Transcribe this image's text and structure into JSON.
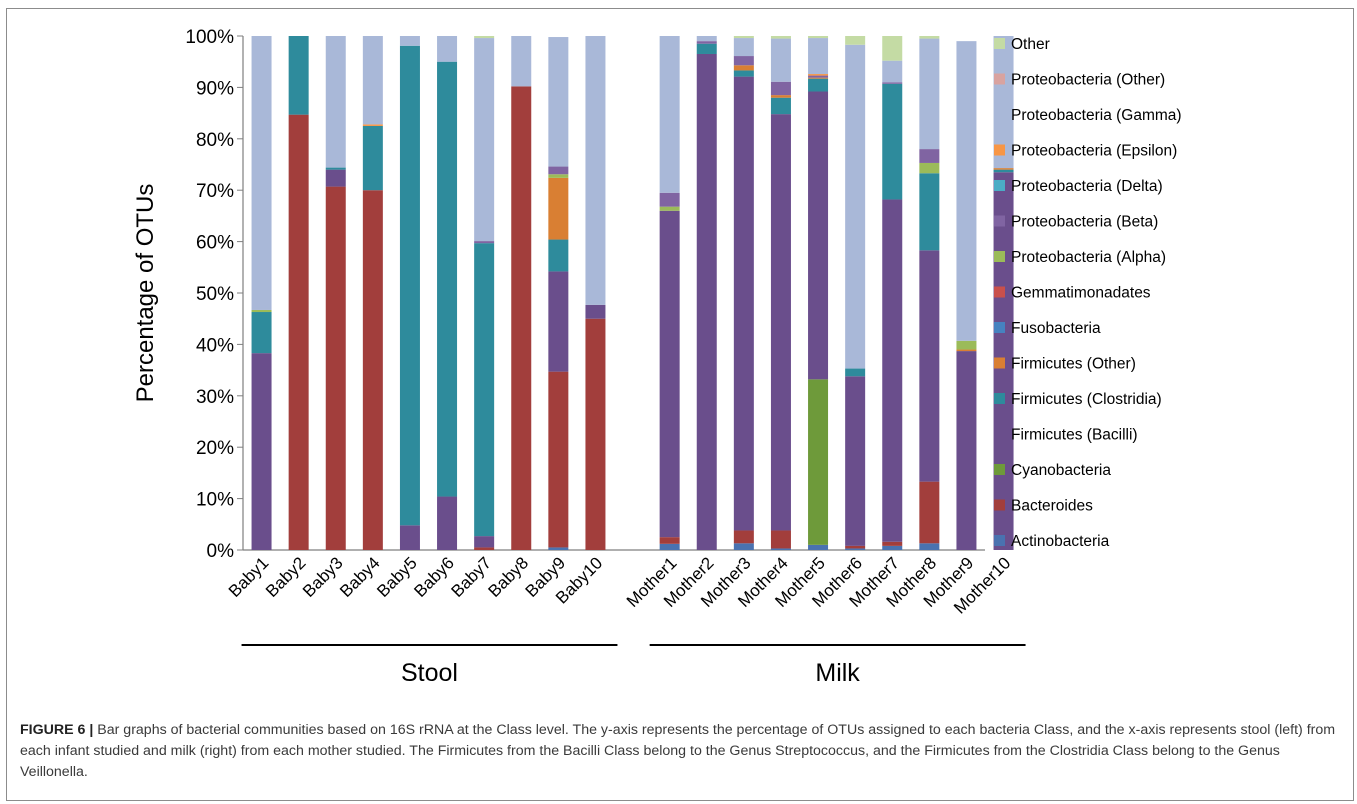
{
  "chart_data": {
    "type": "bar",
    "stacked": true,
    "ylabel": "Percentage of OTUs",
    "ylim": [
      0,
      100
    ],
    "yticks": [
      "0%",
      "10%",
      "20%",
      "30%",
      "40%",
      "50%",
      "60%",
      "70%",
      "80%",
      "90%",
      "100%"
    ],
    "grid": false,
    "legend_position": "right",
    "groups": [
      {
        "label": "Stool",
        "categories": [
          "Baby1",
          "Baby2",
          "Baby3",
          "Baby4",
          "Baby5",
          "Baby6",
          "Baby7",
          "Baby8",
          "Baby9",
          "Baby10"
        ]
      },
      {
        "label": "Milk",
        "categories": [
          "Mother1",
          "Mother2",
          "Mother3",
          "Mother4",
          "Mother5",
          "Mother6",
          "Mother7",
          "Mother8",
          "Mother9",
          "Mother10"
        ]
      }
    ],
    "categories": [
      "Baby1",
      "Baby2",
      "Baby3",
      "Baby4",
      "Baby5",
      "Baby6",
      "Baby7",
      "Baby8",
      "Baby9",
      "Baby10",
      "Mother1",
      "Mother2",
      "Mother3",
      "Mother4",
      "Mother5",
      "Mother6",
      "Mother7",
      "Mother8",
      "Mother9",
      "Mother10"
    ],
    "series": [
      {
        "name": "Actinobacteria",
        "color": "#4a72b0",
        "values": [
          0,
          0,
          0,
          0,
          0,
          0,
          0,
          0,
          0.5,
          0,
          1.2,
          0,
          1.3,
          0.3,
          1.0,
          0.3,
          0.8,
          1.3,
          0,
          0
        ]
      },
      {
        "name": "Bacteroides",
        "color": "#a23e3c",
        "values": [
          0,
          84.7,
          70.7,
          70.0,
          0,
          0,
          0.5,
          90.2,
          34.2,
          45.0,
          1.3,
          0,
          2.5,
          3.5,
          0,
          0.5,
          0.8,
          12.0,
          0,
          0
        ]
      },
      {
        "name": "Cyanobacteria",
        "color": "#6e9a3a",
        "values": [
          0,
          0,
          0,
          0,
          0,
          0,
          0,
          0,
          0,
          0,
          0,
          0,
          0,
          0,
          32.2,
          0,
          0,
          0,
          0,
          0
        ]
      },
      {
        "name": "Firmicutes (Bacilli)",
        "color": "#6a4e8c",
        "values": [
          38.3,
          0,
          3.3,
          0,
          4.8,
          10.4,
          2.2,
          0,
          19.5,
          2.7,
          63.5,
          96.5,
          88.3,
          81.0,
          56.0,
          33.0,
          66.6,
          45.0,
          38.7,
          73.5
        ]
      },
      {
        "name": "Firmicutes (Clostridia)",
        "color": "#2e8b9c",
        "values": [
          8.0,
          15.3,
          0.4,
          12.5,
          93.3,
          84.6,
          57.0,
          0,
          6.2,
          0,
          0,
          2.0,
          1.2,
          3.2,
          2.5,
          1.5,
          22.5,
          15.0,
          0,
          0.5
        ]
      },
      {
        "name": "Firmicutes (Other)",
        "color": "#d97f33",
        "values": [
          0,
          0,
          0,
          0,
          0,
          0,
          0,
          0,
          12.0,
          0,
          0,
          0,
          1.0,
          0.5,
          0.2,
          0,
          0,
          0,
          0.3,
          0.3
        ]
      },
      {
        "name": "Fusobacteria",
        "color": "#4682c0",
        "values": [
          0,
          0,
          0,
          0,
          0,
          0,
          0,
          0,
          0,
          0,
          0,
          0,
          0,
          0,
          0,
          0,
          0,
          0,
          0,
          0
        ]
      },
      {
        "name": "Gemmatimonadates",
        "color": "#c9504c",
        "values": [
          0,
          0,
          0,
          0,
          0,
          0,
          0,
          0,
          0,
          0,
          0,
          0,
          0,
          0,
          0,
          0,
          0,
          0,
          0,
          0
        ]
      },
      {
        "name": "Proteobacteria (Alpha)",
        "color": "#9bbb59",
        "values": [
          0.4,
          0,
          0,
          0,
          0,
          0,
          0,
          0,
          0.7,
          0,
          0.8,
          0,
          0,
          0,
          0,
          0,
          0,
          2.0,
          1.7,
          0
        ]
      },
      {
        "name": "Proteobacteria (Beta)",
        "color": "#8064a2",
        "values": [
          0,
          0,
          0,
          0,
          0,
          0,
          0.4,
          0,
          1.5,
          0,
          2.7,
          0.5,
          1.8,
          2.6,
          0.4,
          0,
          0.3,
          2.7,
          0,
          0
        ]
      },
      {
        "name": "Proteobacteria (Delta)",
        "color": "#4bacc6",
        "values": [
          0,
          0,
          0,
          0,
          0,
          0,
          0,
          0,
          0,
          0,
          0,
          0,
          0,
          0,
          0,
          0,
          0,
          0,
          0,
          0
        ]
      },
      {
        "name": "Proteobacteria (Epsilon)",
        "color": "#f79646",
        "values": [
          0,
          0,
          0,
          0.3,
          0,
          0,
          0,
          0,
          0,
          0,
          0,
          0,
          0,
          0,
          0.3,
          0,
          0,
          0,
          0,
          0
        ]
      },
      {
        "name": "Proteobacteria (Gamma)",
        "color": "#a9b8d8",
        "values": [
          53.3,
          0,
          25.6,
          17.2,
          1.9,
          5.0,
          39.5,
          9.8,
          25.2,
          52.3,
          30.5,
          1.0,
          3.5,
          8.4,
          7.0,
          63.0,
          4.2,
          21.5,
          58.3,
          25.7
        ]
      },
      {
        "name": "Proteobacteria (Other)",
        "color": "#d9a3a0",
        "values": [
          0,
          0,
          0,
          0,
          0,
          0,
          0,
          0,
          0,
          0,
          0,
          0,
          0,
          0,
          0,
          0,
          0,
          0,
          0,
          0
        ]
      },
      {
        "name": "Other",
        "color": "#c4dba4",
        "values": [
          0,
          0,
          0,
          0,
          0,
          0,
          0.4,
          0,
          0,
          0,
          0,
          0,
          0.4,
          0.5,
          0.4,
          1.7,
          4.8,
          0.5,
          0,
          0
        ]
      }
    ]
  },
  "caption": {
    "label": "FIGURE 6 |",
    "text": " Bar graphs of bacterial communities based on 16S rRNA at the Class level. The y-axis represents the percentage of OTUs assigned to each bacteria Class, and the x-axis represents stool (left) from each infant studied and milk (right) from each mother studied. The Firmicutes from the Bacilli Class belong to the Genus Streptococcus, and the Firmicutes from the Clostridia Class belong to the Genus Veillonella."
  }
}
